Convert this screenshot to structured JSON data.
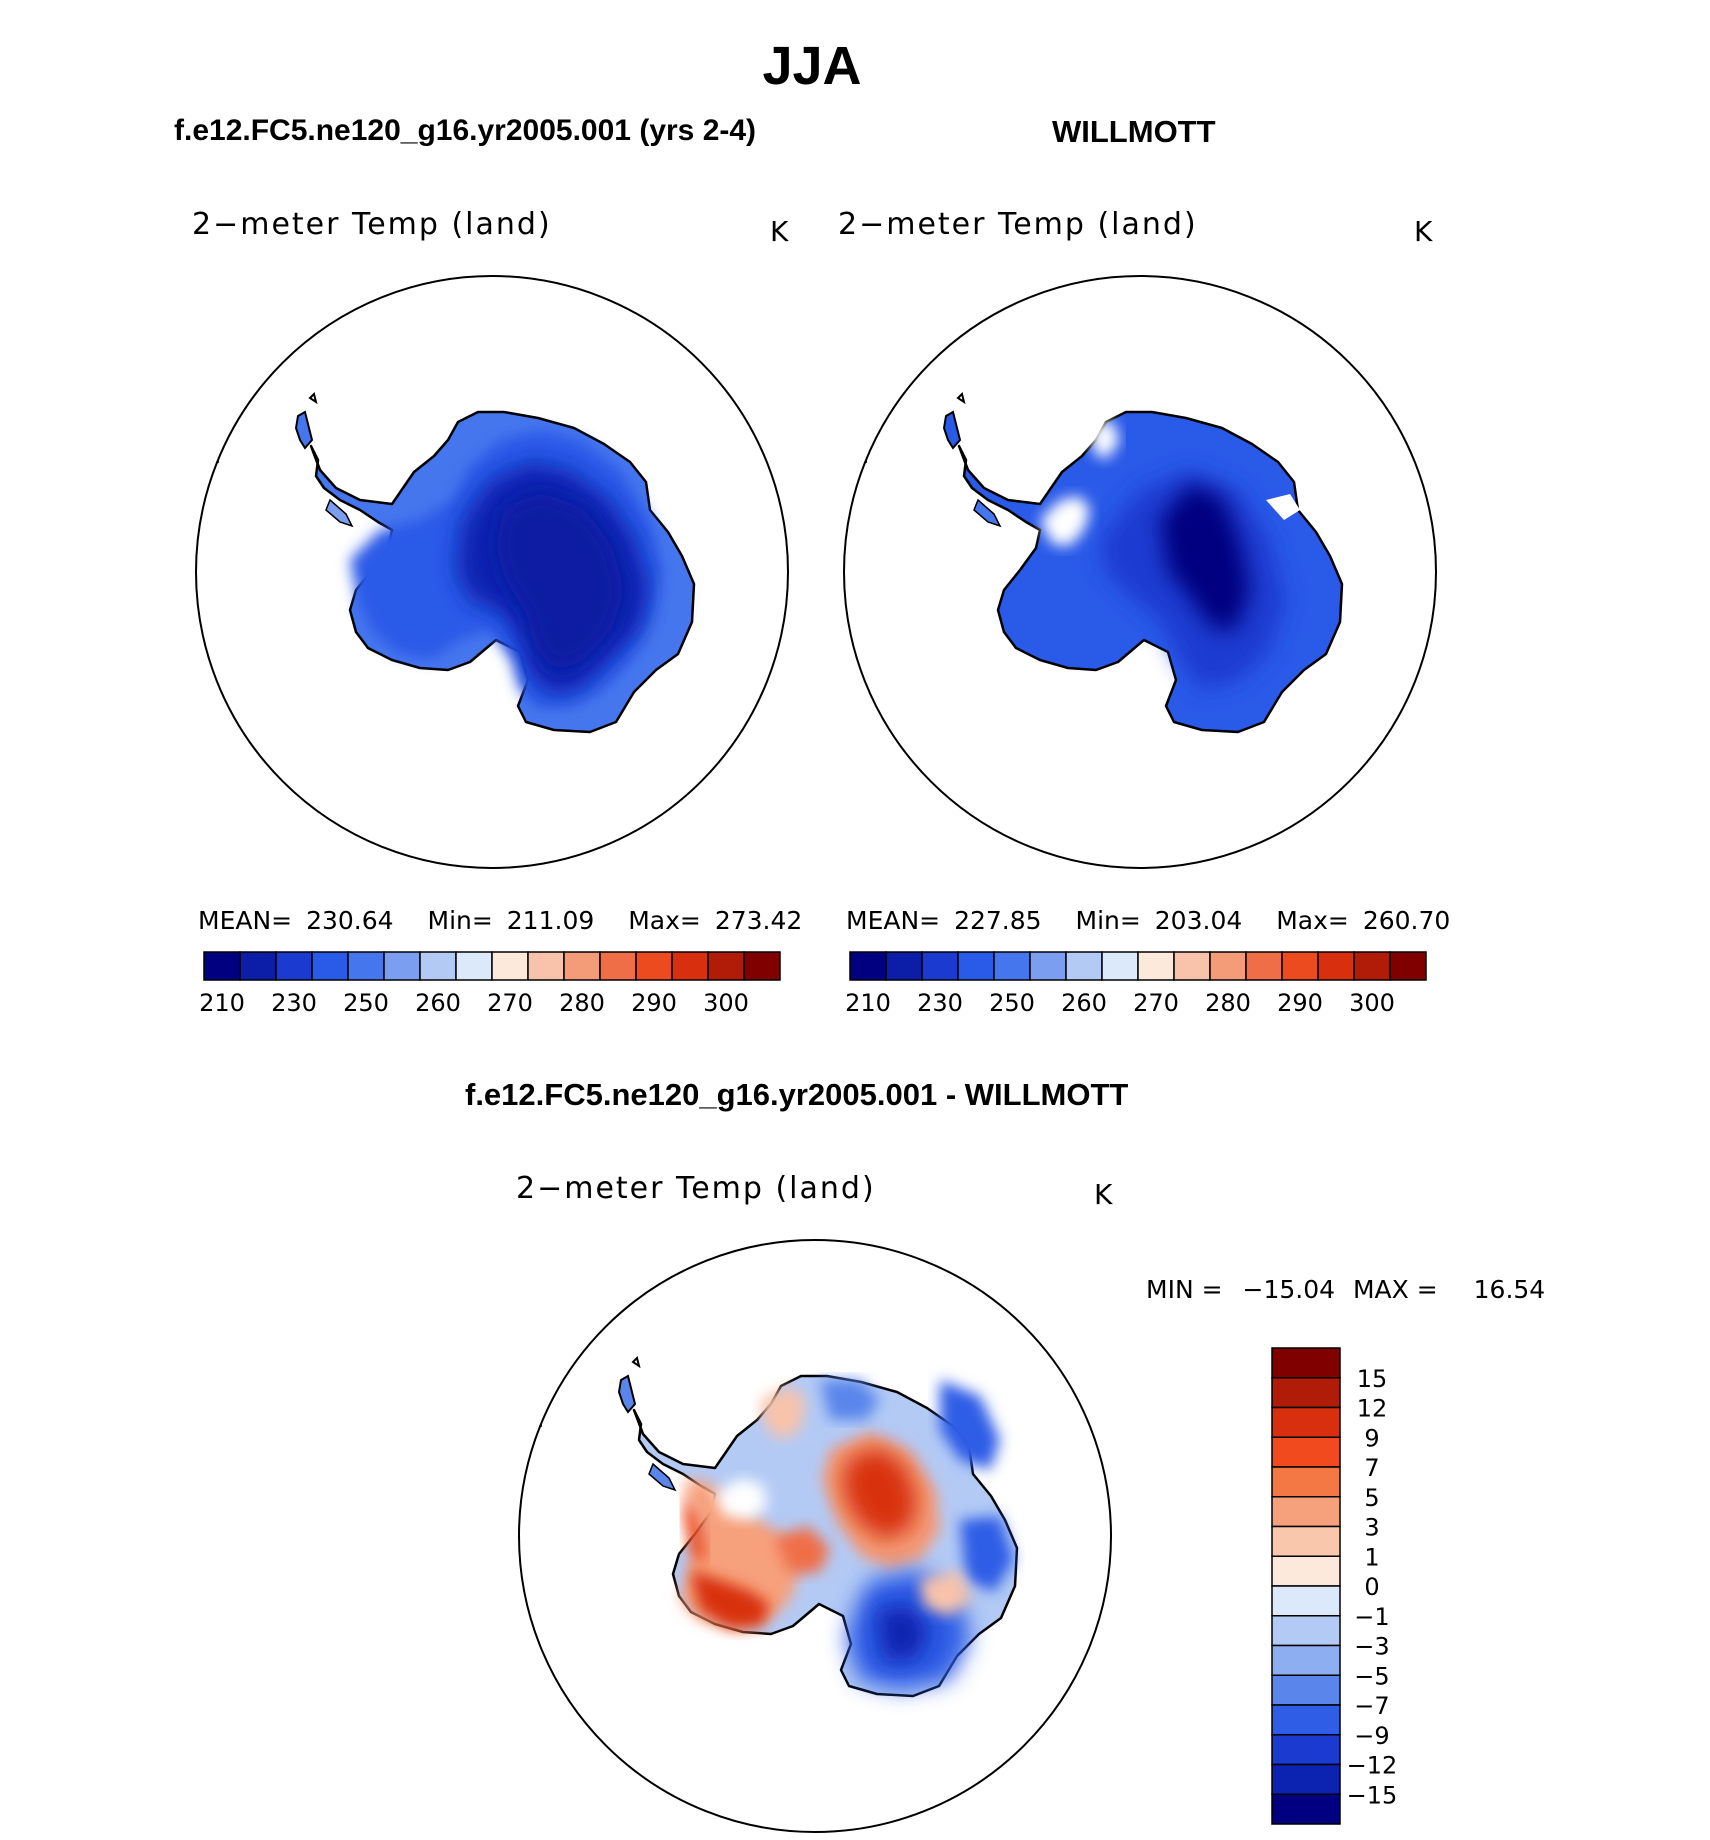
{
  "figure": {
    "season": "JJA",
    "panel_left_header": "f.e12.FC5.ne120_g16.yr2005.001 (yrs 2-4)",
    "panel_right_header": "WILLMOTT",
    "diff_header": "f.e12.FC5.ne120_g16.yr2005.001 - WILLMOTT"
  },
  "chart_data": [
    {
      "type": "heatmap",
      "projection": "south polar stereographic",
      "title": "2−meter Temp (land)",
      "units": "K",
      "stats": {
        "mean_label": "MEAN=",
        "mean": "230.64",
        "min_label": "Min=",
        "min": "211.09",
        "max_label": "Max=",
        "max": "273.42"
      },
      "colorbar": {
        "levels": [
          "210",
          "230",
          "250",
          "260",
          "270",
          "280",
          "290",
          "300"
        ],
        "colors": [
          "#000080",
          "#0c1ea8",
          "#1a3ad0",
          "#2a5ae8",
          "#4676ee",
          "#7c9ef0",
          "#b3caf5",
          "#dce9fb",
          "#fde9dc",
          "#f8c3aa",
          "#f49b78",
          "#f06e47",
          "#ec4a1f",
          "#d8300e",
          "#b01c08",
          "#800000"
        ]
      }
    },
    {
      "type": "heatmap",
      "projection": "south polar stereographic",
      "title": "2−meter Temp (land)",
      "units": "K",
      "stats": {
        "mean_label": "MEAN=",
        "mean": "227.85",
        "min_label": "Min=",
        "min": "203.04",
        "max_label": "Max=",
        "max": "260.70"
      },
      "colorbar": {
        "levels": [
          "210",
          "230",
          "250",
          "260",
          "270",
          "280",
          "290",
          "300"
        ],
        "colors": [
          "#000080",
          "#0c1ea8",
          "#1a3ad0",
          "#2a5ae8",
          "#4676ee",
          "#7c9ef0",
          "#b3caf5",
          "#dce9fb",
          "#fde9dc",
          "#f8c3aa",
          "#f49b78",
          "#f06e47",
          "#ec4a1f",
          "#d8300e",
          "#b01c08",
          "#800000"
        ]
      }
    },
    {
      "type": "heatmap",
      "projection": "south polar stereographic",
      "title": "2−meter Temp (land)",
      "units": "K",
      "stats": {
        "min_label": "MIN =",
        "min": "−15.04",
        "max_label": "MAX =",
        "max": "16.54"
      },
      "colorbar": {
        "levels": [
          "15",
          "12",
          "9",
          "7",
          "5",
          "3",
          "1",
          "0",
          "−1",
          "−3",
          "−5",
          "−7",
          "−9",
          "−12",
          "−15"
        ],
        "colors": [
          "#800000",
          "#b01c08",
          "#d8300e",
          "#f04a1e",
          "#f47844",
          "#f7a07c",
          "#f9c8ac",
          "#fde9dc",
          "#dce9fb",
          "#b3caf5",
          "#8eaef2",
          "#5a86ec",
          "#2f5de6",
          "#1a3ad0",
          "#0c22b0",
          "#000080"
        ]
      }
    }
  ]
}
